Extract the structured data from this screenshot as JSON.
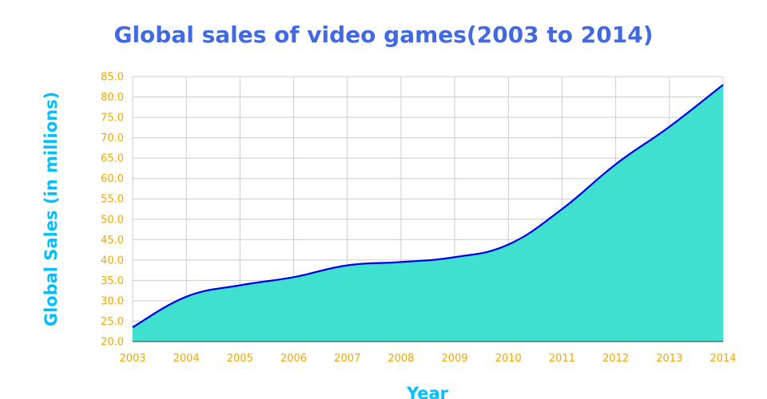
{
  "chart_data": {
    "type": "area",
    "title": "Global sales of video games(2003 to 2014)",
    "xlabel": "Year",
    "ylabel": "Global Sales (in millions)",
    "x": [
      "2003",
      "2004",
      "2005",
      "2006",
      "2007",
      "2008",
      "2009",
      "2010",
      "2011",
      "2012",
      "2013",
      "2014"
    ],
    "series": [
      {
        "values": [
          23.5,
          31.0,
          33.8,
          35.8,
          38.7,
          39.5,
          40.7,
          43.8,
          52.5,
          63.5,
          72.7,
          83.0
        ]
      }
    ],
    "ylim": [
      20.0,
      85.0
    ],
    "ytick_step": 5.0,
    "y_ticks": [
      "20.0",
      "25.0",
      "30.0",
      "35.0",
      "40.0",
      "45.0",
      "50.0",
      "55.0",
      "60.0",
      "65.0",
      "70.0",
      "75.0",
      "80.0",
      "85.0"
    ],
    "grid": true,
    "legend": false,
    "colors": {
      "fill": "#40e0d0",
      "line": "#0000e6",
      "title": "#4169e1",
      "axis_label": "#00bfff",
      "tick_label": "#f0a800",
      "grid": "#cccccc"
    }
  }
}
